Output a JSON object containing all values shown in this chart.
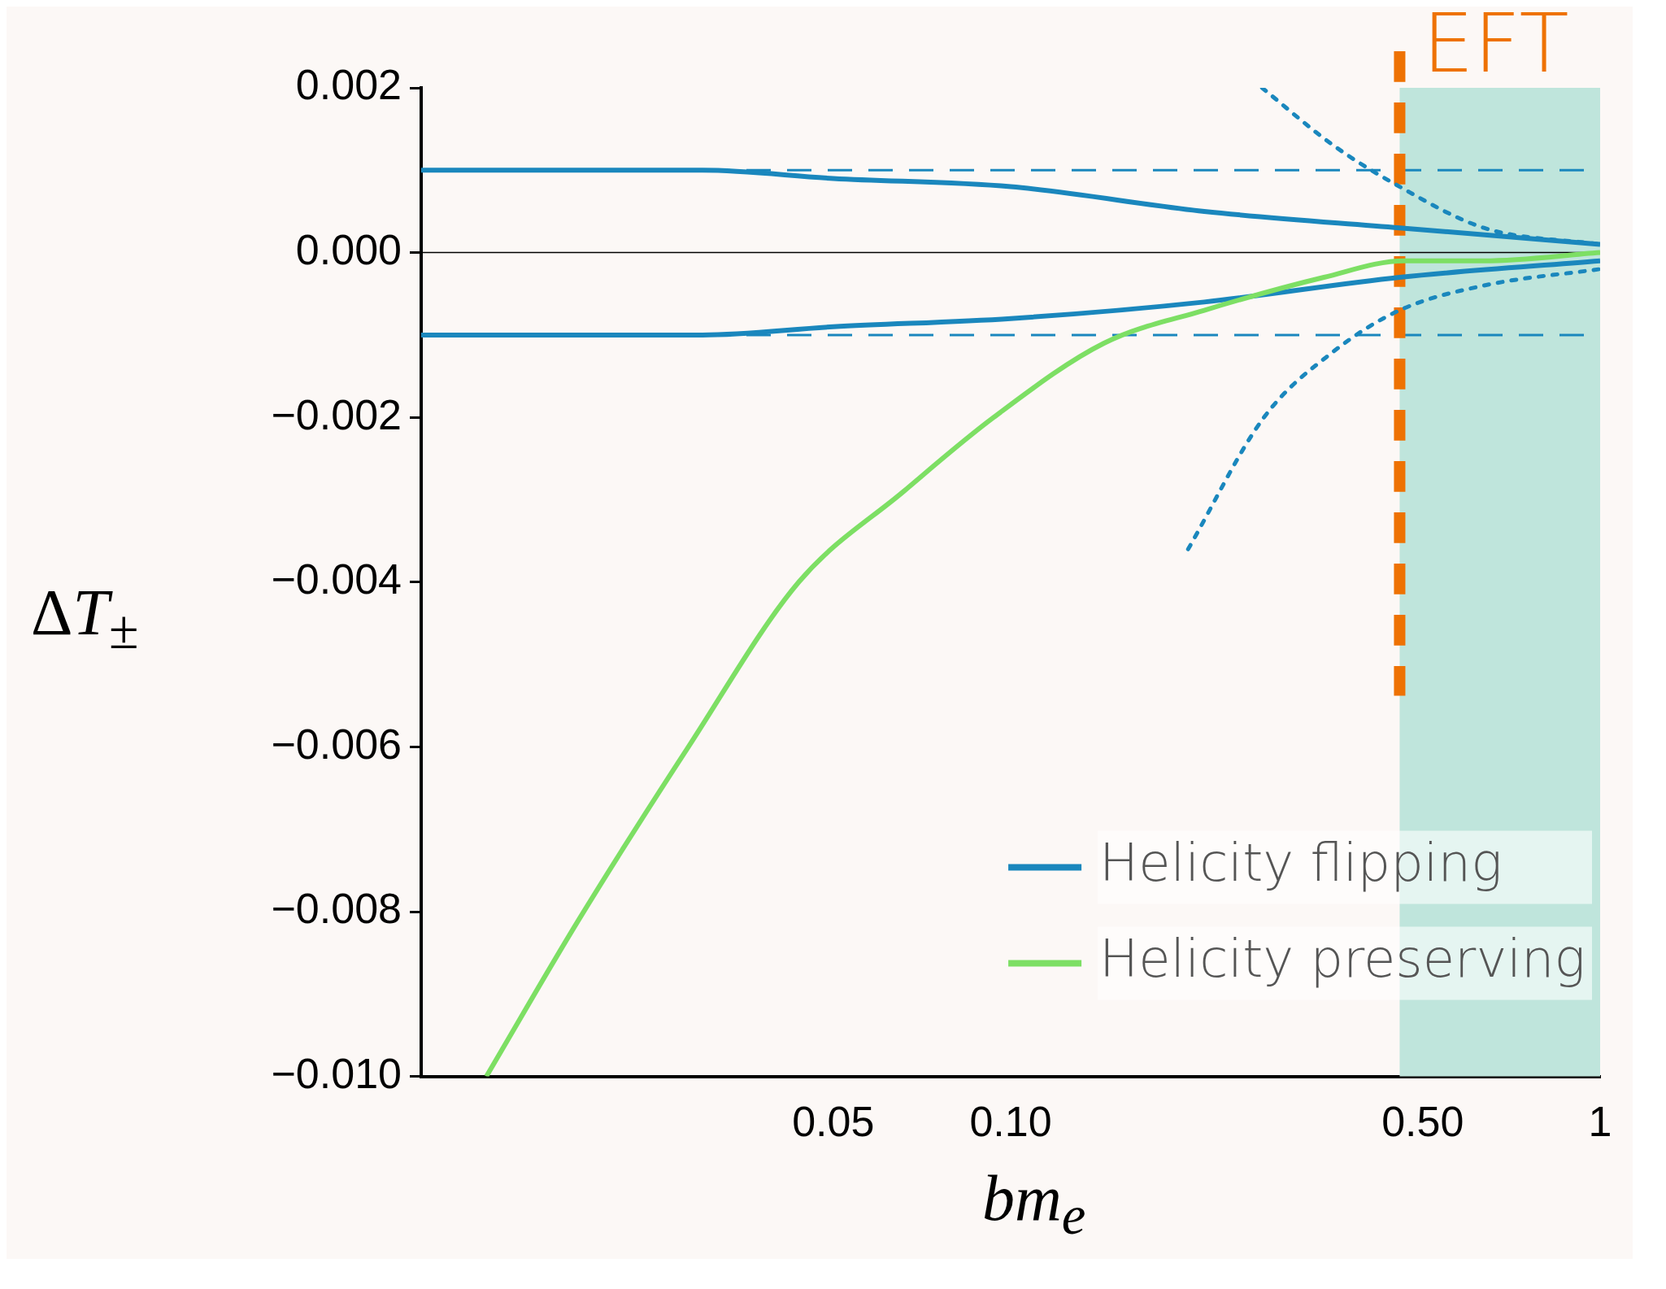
{
  "chart_data": {
    "type": "line",
    "xlabel": "bm$_{e}$",
    "ylabel": "ΔT$_{±}$",
    "log": "x",
    "xlim": [
      0.01,
      1
    ],
    "xticks": [
      0.05,
      {
        "value": 0.1,
        "label": "0.10"
      },
      {
        "value": 0.5,
        "label": "0.50"
      },
      1
    ],
    "ylim": [
      -0.01,
      0.002
    ],
    "yticks": [
      {
        "value": -0.01,
        "label": "−0.010"
      },
      {
        "value": -0.008,
        "label": "−0.008"
      },
      {
        "value": -0.006,
        "label": "−0.006"
      },
      {
        "value": -0.004,
        "label": "−0.004"
      },
      {
        "value": -0.002,
        "label": "−0.002"
      },
      {
        "value": 0,
        "label": "0.000"
      },
      0.002
    ],
    "grid": false,
    "legend": "bottom right",
    "marker": "none",
    "series": [
      {
        "name": "Helicity flipping",
        "color": "#1a87bd",
        "line_style": "solid",
        "x": [
          0.01,
          0.03,
          0.05,
          0.1,
          0.213,
          0.457,
          1
        ],
        "values": [
          0.001,
          0.001,
          0.0009,
          0.0008,
          0.0005,
          0.0003,
          0.0001
        ]
      },
      {
        "name": "Helicity preserving",
        "color": "#7ddf64",
        "line_style": "solid",
        "x": [
          0.0129,
          0.0185,
          0.0284,
          0.0437,
          0.0658,
          0.0936,
          0.144,
          0.213,
          0.34,
          0.465,
          0.635,
          1
        ],
        "values": [
          -0.01,
          -0.0081,
          -0.006,
          -0.004,
          -0.0029,
          -0.002,
          -0.0011,
          -0.0007,
          -0.0003,
          -0.0001,
          -0.0001,
          0
        ]
      },
      {
        "color": "#1a87bd",
        "line_style": "solid",
        "x": [
          0.01,
          0.03,
          0.05,
          0.1,
          0.213,
          0.457,
          1
        ],
        "values": [
          -0.001,
          -0.001,
          -0.0009,
          -0.0008,
          -0.0006,
          -0.0003,
          -0.0001
        ]
      },
      {
        "color": "#1a87bd",
        "line_style": "dotted",
        "x": [
          0.267,
          0.353,
          0.457,
          0.635,
          1
        ],
        "values": [
          0.002,
          0.0013,
          0.0008,
          0.0003,
          0.0001
        ]
      },
      {
        "color": "#1a87bd",
        "line_style": "dotted",
        "x": [
          0.2,
          0.269,
          0.353,
          0.457,
          0.635,
          1
        ],
        "values": [
          -0.0036,
          -0.002,
          -0.0012,
          -0.0007,
          -0.0004,
          -0.0002
        ]
      }
    ],
    "ref_lines": [
      {
        "axis": "y",
        "value": 0.001,
        "color": "#1a87bd",
        "line_style": "dashed"
      },
      {
        "axis": "y",
        "value": -0.001,
        "color": "#1a87bd",
        "line_style": "dashed"
      },
      {
        "axis": "y",
        "value": 0,
        "color": "#000000",
        "line_style": "solid"
      },
      {
        "axis": "x",
        "value": 0.457,
        "label": "EFT",
        "color": "#ee7203",
        "line_style": "dashed"
      }
    ],
    "bands": [
      {
        "axis": "x",
        "from": 0.457,
        "to": 1,
        "color": "#bfe5dc"
      }
    ]
  }
}
